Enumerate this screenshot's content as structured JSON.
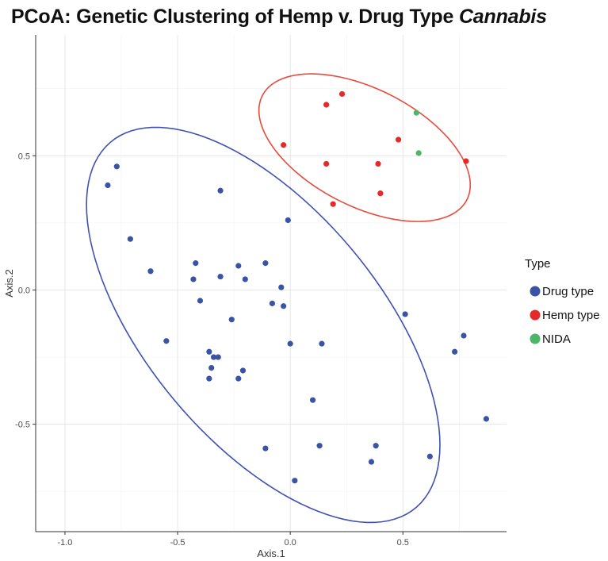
{
  "chart_data": {
    "type": "scatter",
    "title_main": "PCoA: Genetic Clustering of Hemp v. Drug Type ",
    "title_italic": "Cannabis",
    "xlabel": "Axis.1",
    "ylabel": "Axis.2",
    "xlim": [
      -1.13,
      0.96
    ],
    "ylim": [
      -0.9,
      0.95
    ],
    "x_ticks": [
      -1.0,
      -0.5,
      0.0,
      0.5
    ],
    "x_tick_labels": [
      "-1.0",
      "-0.5",
      "0.0",
      "0.5"
    ],
    "y_ticks": [
      -0.5,
      0.0,
      0.5
    ],
    "y_tick_labels": [
      "-0.5",
      "0.0",
      "0.5"
    ],
    "grid": true,
    "legend_position": "right",
    "legend_title": "Type",
    "series": [
      {
        "name": "Drug type",
        "color": "#3a53a4",
        "points": [
          [
            -0.77,
            0.46
          ],
          [
            -0.81,
            0.39
          ],
          [
            -0.31,
            0.37
          ],
          [
            -0.01,
            0.26
          ],
          [
            -0.71,
            0.19
          ],
          [
            -0.62,
            0.07
          ],
          [
            -0.42,
            0.1
          ],
          [
            -0.23,
            0.09
          ],
          [
            -0.11,
            0.1
          ],
          [
            -0.43,
            0.04
          ],
          [
            -0.31,
            0.05
          ],
          [
            -0.2,
            0.04
          ],
          [
            -0.04,
            0.01
          ],
          [
            -0.4,
            -0.04
          ],
          [
            -0.08,
            -0.05
          ],
          [
            -0.03,
            -0.06
          ],
          [
            -0.26,
            -0.11
          ],
          [
            0.51,
            -0.09
          ],
          [
            0.77,
            -0.17
          ],
          [
            -0.55,
            -0.19
          ],
          [
            0.0,
            -0.2
          ],
          [
            0.14,
            -0.2
          ],
          [
            -0.36,
            -0.23
          ],
          [
            -0.32,
            -0.25
          ],
          [
            -0.34,
            -0.25
          ],
          [
            0.73,
            -0.23
          ],
          [
            -0.35,
            -0.29
          ],
          [
            -0.21,
            -0.3
          ],
          [
            -0.23,
            -0.33
          ],
          [
            -0.36,
            -0.33
          ],
          [
            0.1,
            -0.41
          ],
          [
            0.87,
            -0.48
          ],
          [
            -0.11,
            -0.59
          ],
          [
            0.13,
            -0.58
          ],
          [
            0.38,
            -0.58
          ],
          [
            0.62,
            -0.62
          ],
          [
            0.36,
            -0.64
          ],
          [
            0.02,
            -0.71
          ]
        ]
      },
      {
        "name": "Hemp type",
        "color": "#e8292a",
        "points": [
          [
            0.23,
            0.73
          ],
          [
            0.16,
            0.69
          ],
          [
            0.48,
            0.56
          ],
          [
            -0.03,
            0.54
          ],
          [
            0.16,
            0.47
          ],
          [
            0.39,
            0.47
          ],
          [
            0.78,
            0.48
          ],
          [
            0.4,
            0.36
          ],
          [
            0.19,
            0.32
          ]
        ]
      },
      {
        "name": "NIDA",
        "color": "#4db56a",
        "points": [
          [
            0.56,
            0.66
          ],
          [
            0.57,
            0.51
          ]
        ]
      }
    ],
    "ellipses": [
      {
        "name": "Drug type",
        "color": "#3f51b5",
        "center": [
          -0.12,
          -0.13
        ],
        "semi_major": 0.965,
        "semi_minor": 0.475,
        "angle_deg": -42
      },
      {
        "name": "Hemp type",
        "color": "#e64b3c",
        "center": [
          0.33,
          0.53
        ],
        "semi_major": 0.495,
        "semi_minor": 0.225,
        "angle_deg": -21
      }
    ]
  }
}
